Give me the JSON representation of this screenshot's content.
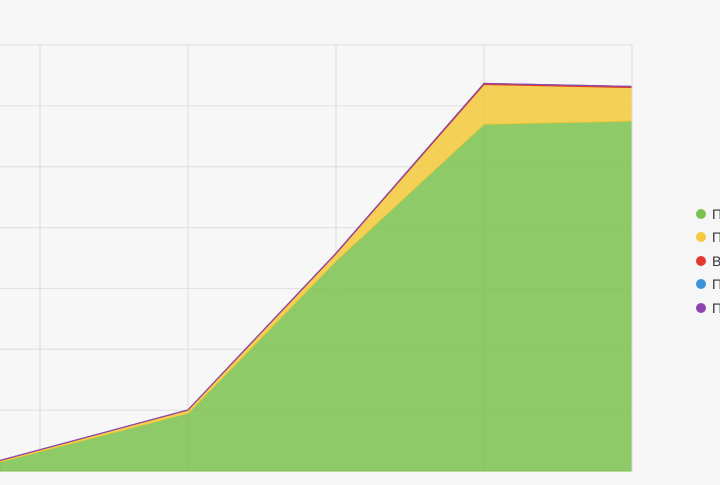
{
  "chart_data": {
    "type": "area",
    "stacked": true,
    "grid": true,
    "legend_position": "right",
    "x_points": 5,
    "ylim": [
      0,
      7
    ],
    "series": [
      {
        "name": "П",
        "color": "#7cc24f",
        "values": [
          0.15,
          0.95,
          3.45,
          5.7,
          5.75
        ]
      },
      {
        "name": "П",
        "color": "#f5c93b",
        "values": [
          0.02,
          0.05,
          0.12,
          0.65,
          0.55
        ]
      },
      {
        "name": "В",
        "color": "#e0392f",
        "values": [
          0.005,
          0.005,
          0.01,
          0.02,
          0.02
        ]
      },
      {
        "name": "П",
        "color": "#3b94d9",
        "values": [
          0.0,
          0.0,
          0.0,
          0.0,
          0.0
        ]
      },
      {
        "name": "П",
        "color": "#8e44ad",
        "values": [
          0.0,
          0.0,
          0.0,
          0.0,
          0.0
        ]
      }
    ]
  }
}
